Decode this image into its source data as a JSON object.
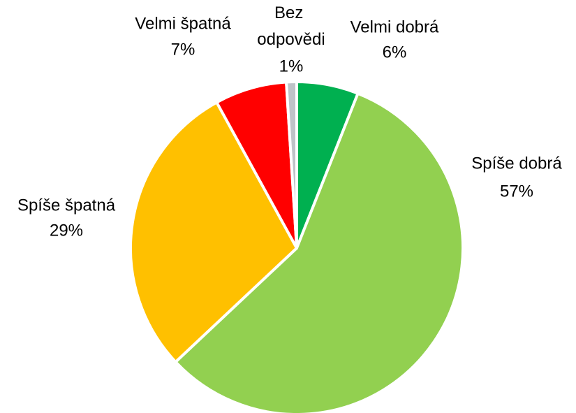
{
  "chart_data": {
    "type": "pie",
    "categories": [
      "Velmi dobrá",
      "Spíše dobrá",
      "Spíše špatná",
      "Velmi špatná",
      "Bez odpovědi"
    ],
    "values": [
      6,
      57,
      29,
      7,
      1
    ],
    "value_labels": [
      "6%",
      "57%",
      "29%",
      "7%",
      "1%"
    ],
    "colors": [
      "#00b050",
      "#92d050",
      "#ffc000",
      "#ff0000",
      "#bfc3c8"
    ]
  }
}
